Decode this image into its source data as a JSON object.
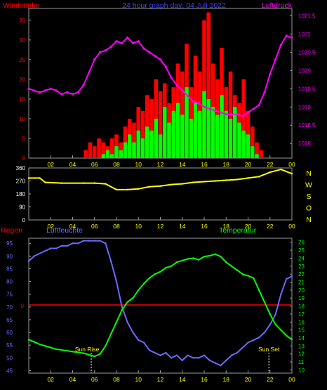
{
  "chart_data": [
    {
      "type": "line",
      "title": "24 hour graph day: 04 Juli 2022",
      "x_ticks": [
        "02",
        "04",
        "06",
        "08",
        "10",
        "12",
        "14",
        "16",
        "18",
        "20",
        "22",
        "00"
      ],
      "xlim": [
        0,
        24
      ],
      "left_axis": {
        "label": "Windstärke",
        "ticks": [
          "0",
          "5",
          "10",
          "15",
          "20",
          "25",
          "30",
          "35"
        ],
        "ylim": [
          0,
          38
        ]
      },
      "right_axis": {
        "label": "Luftdruck",
        "ticks": [
          "1018",
          "1018.5",
          "1019",
          "1019.5",
          "1020",
          "1020.5",
          "1021",
          "1021.5"
        ],
        "ylim": [
          1017.6,
          1021.7
        ]
      },
      "series": [
        {
          "name": "Luftdruck",
          "color": "#ff00ff",
          "axis": "right",
          "x": [
            0,
            0.5,
            1,
            1.5,
            2,
            2.5,
            3,
            3.5,
            4,
            4.5,
            5,
            5.5,
            6,
            6.5,
            7,
            7.5,
            8,
            8.5,
            9,
            9.5,
            10,
            10.5,
            11,
            11.5,
            12,
            12.5,
            13,
            13.5,
            14,
            14.5,
            15,
            15.5,
            16,
            16.5,
            17,
            17.5,
            18,
            18.5,
            19,
            19.5,
            20,
            20.5,
            21,
            21.5,
            22,
            22.5,
            23,
            23.5,
            24
          ],
          "y": [
            1019.5,
            1019.45,
            1019.4,
            1019.45,
            1019.5,
            1019.45,
            1019.35,
            1019.4,
            1019.35,
            1019.4,
            1019.6,
            1019.95,
            1020.3,
            1020.5,
            1020.55,
            1020.65,
            1020.8,
            1020.75,
            1020.9,
            1020.75,
            1020.8,
            1020.6,
            1020.5,
            1020.4,
            1020.3,
            1020.1,
            1019.8,
            1019.6,
            1019.45,
            1019.3,
            1019.15,
            1019.1,
            1019,
            1018.95,
            1018.9,
            1018.85,
            1018.8,
            1018.8,
            1018.8,
            1018.75,
            1018.85,
            1018.95,
            1019.05,
            1019.4,
            1019.9,
            1020.3,
            1020.7,
            1020.95,
            1020.9
          ]
        },
        {
          "name": "Windböen",
          "color": "#ff0000",
          "axis": "left",
          "x": [
            5.2,
            5.6,
            6,
            6.4,
            6.8,
            7.2,
            7.6,
            8,
            8.4,
            8.8,
            9.2,
            9.6,
            10,
            10.4,
            10.8,
            11.2,
            11.6,
            12,
            12.4,
            12.8,
            13.2,
            13.6,
            14,
            14.4,
            14.8,
            15.2,
            15.6,
            16,
            16.4,
            16.8,
            17.2,
            17.6,
            18,
            18.4,
            18.8,
            19.2,
            19.6,
            20,
            20.4,
            20.8,
            21.2
          ],
          "y": [
            2,
            4,
            3,
            5,
            4,
            3,
            5,
            6,
            4,
            8,
            10,
            9,
            13,
            12,
            16,
            15,
            20,
            17,
            19,
            14,
            18,
            24,
            22,
            29,
            18,
            26,
            22,
            35,
            37,
            24,
            20,
            28,
            18,
            22,
            16,
            14,
            20,
            12,
            8,
            4,
            2
          ]
        },
        {
          "name": "Windstärke",
          "color": "#00ff00",
          "axis": "left",
          "x": [
            6.8,
            7.2,
            7.6,
            8,
            8.4,
            8.8,
            9.2,
            9.6,
            10,
            10.4,
            10.8,
            11.2,
            11.6,
            12,
            12.4,
            12.8,
            13.2,
            13.6,
            14,
            14.4,
            14.8,
            15.2,
            15.6,
            16,
            16.4,
            16.8,
            17.2,
            17.6,
            18,
            18.4,
            18.8,
            19.2,
            19.6,
            20,
            20.4,
            20.8
          ],
          "y": [
            1,
            2,
            1,
            3,
            2,
            4,
            6,
            4,
            7,
            5,
            8,
            7,
            10,
            6,
            13,
            9,
            12,
            14,
            11,
            18,
            10,
            14,
            12,
            17,
            15,
            13,
            11,
            16,
            12,
            10,
            13,
            9,
            7,
            6,
            3,
            1
          ]
        }
      ]
    },
    {
      "type": "line",
      "x_ticks": [
        "02",
        "04",
        "06",
        "08",
        "10",
        "12",
        "14",
        "16",
        "18",
        "20",
        "22",
        "00"
      ],
      "xlim": [
        0,
        24
      ],
      "left_axis": {
        "ticks": [
          "0",
          "90",
          "180",
          "270",
          "360"
        ],
        "ylim": [
          0,
          360
        ]
      },
      "right_axis": {
        "ticks": [
          "N",
          "W",
          "S",
          "O",
          "N"
        ]
      },
      "series": [
        {
          "name": "Windrichtung",
          "color": "#ffff00",
          "axis": "left",
          "x": [
            0,
            1,
            1.5,
            3,
            5,
            6,
            7,
            8,
            9,
            10,
            11,
            12,
            13,
            14,
            15,
            16,
            17,
            18,
            19,
            20,
            21,
            22,
            23,
            24
          ],
          "y": [
            290,
            290,
            260,
            255,
            255,
            255,
            250,
            210,
            210,
            215,
            230,
            235,
            245,
            250,
            260,
            265,
            270,
            275,
            280,
            290,
            300,
            330,
            350,
            320
          ]
        }
      ]
    },
    {
      "type": "line",
      "x_ticks": [
        "02",
        "04",
        "06",
        "08",
        "10",
        "12",
        "14",
        "16",
        "18",
        "20",
        "22",
        "00"
      ],
      "xlim": [
        0,
        24
      ],
      "left_axis": {
        "label": "Luftfeuchte",
        "ticks": [
          "45",
          "50",
          "55",
          "60",
          "65",
          "70",
          "75",
          "80",
          "85",
          "90",
          "95"
        ],
        "ylim": [
          44,
          97
        ]
      },
      "right_axis": {
        "label": "Temperatur",
        "ticks": [
          "10",
          "11",
          "12",
          "13",
          "14",
          "15",
          "16",
          "17",
          "18",
          "19",
          "20",
          "21",
          "22",
          "23",
          "24",
          "25",
          "26"
        ],
        "ylim": [
          9.6,
          26.5
        ]
      },
      "rain_label": "Regen",
      "rain_zero": "0",
      "series": [
        {
          "name": "Luftfeuchte",
          "color": "#6a6aff",
          "axis": "left",
          "x": [
            0,
            0.5,
            1,
            1.5,
            2,
            2.5,
            3,
            3.5,
            4,
            4.5,
            5,
            5.5,
            6,
            6.5,
            7,
            7.5,
            8,
            8.5,
            9,
            9.5,
            10,
            10.5,
            11,
            11.5,
            12,
            12.5,
            13,
            13.5,
            14,
            14.5,
            15,
            15.5,
            16,
            16.5,
            17,
            17.5,
            18,
            18.5,
            19,
            19.5,
            20,
            20.5,
            21,
            21.5,
            22,
            22.5,
            23,
            23.5,
            24
          ],
          "y": [
            88,
            90,
            91,
            92,
            93,
            93,
            94,
            94,
            95,
            95,
            96,
            96,
            96,
            96,
            95,
            88,
            80,
            70,
            64,
            60,
            57,
            56,
            53,
            52,
            51,
            52,
            50,
            51,
            49,
            51,
            50,
            50,
            51,
            49,
            48,
            47,
            49,
            51,
            52,
            54,
            56,
            57,
            58,
            60,
            63,
            67,
            75,
            81,
            82
          ]
        },
        {
          "name": "Temperatur",
          "color": "#00ff00",
          "axis": "right",
          "x": [
            0,
            0.5,
            1,
            1.5,
            2,
            2.5,
            3,
            3.5,
            4,
            4.5,
            5,
            5.5,
            6,
            6.5,
            7,
            7.5,
            8,
            8.5,
            9,
            9.5,
            10,
            10.5,
            11,
            11.5,
            12,
            12.5,
            13,
            13.5,
            14,
            14.5,
            15,
            15.5,
            16,
            16.5,
            17,
            17.5,
            18,
            18.5,
            19,
            19.5,
            20,
            20.5,
            21,
            21.5,
            22,
            22.5,
            23,
            23.5,
            24
          ],
          "y": [
            13.8,
            13.5,
            13.2,
            13,
            12.8,
            12.6,
            12.5,
            12.4,
            12.3,
            12.2,
            12.1,
            11.9,
            11.7,
            12,
            13,
            14.5,
            16,
            17.5,
            18.5,
            19,
            20,
            20.8,
            21.5,
            22,
            22.3,
            22.8,
            23,
            23.5,
            23.7,
            23.9,
            24,
            23.8,
            24.2,
            24.3,
            24.5,
            24.2,
            23.5,
            23,
            22.5,
            22,
            21.8,
            21.5,
            20,
            18.5,
            17,
            15.7,
            15,
            14.3,
            13.8
          ]
        }
      ],
      "annotations": [
        {
          "text": "Sun Rise",
          "x": 5.7
        },
        {
          "text": "Sun Set",
          "x": 21.9
        }
      ]
    }
  ]
}
